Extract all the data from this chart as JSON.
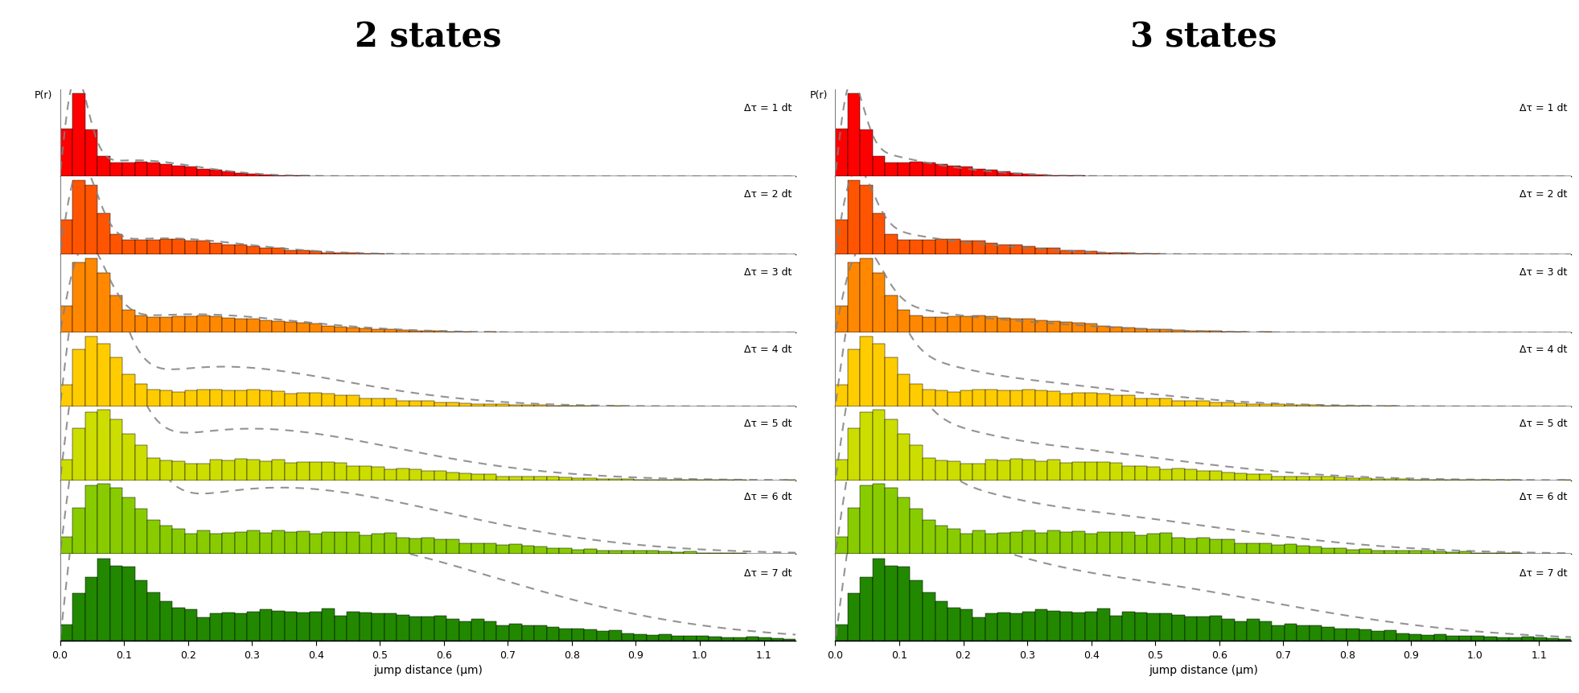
{
  "title_left": "2 states",
  "title_right": "3 states",
  "xlabel": "jump distance (μm)",
  "ylabel": "P(r)",
  "colors": [
    "#ff0000",
    "#ff5500",
    "#ff8800",
    "#ffcc00",
    "#ccdd00",
    "#88cc00",
    "#228800"
  ],
  "delta_tau_labels": [
    "Δτ = 1 dt",
    "Δτ = 2 dt",
    "Δτ = 3 dt",
    "Δτ = 4 dt",
    "Δτ = 5 dt",
    "Δτ = 6 dt",
    "Δτ = 7 dt"
  ],
  "xlim": [
    0.0,
    1.15
  ],
  "n_bins": 60,
  "figsize": [
    19.63,
    8.62
  ],
  "dpi": 100,
  "n_rows": 7
}
